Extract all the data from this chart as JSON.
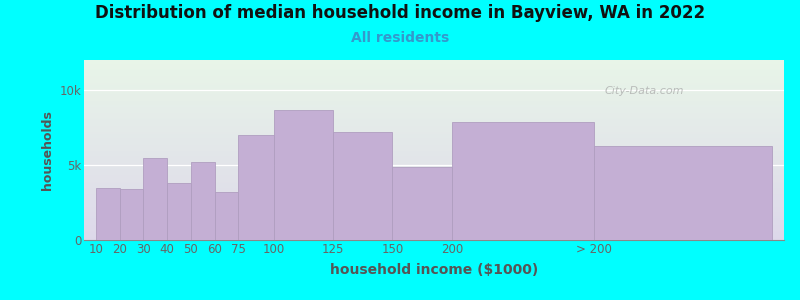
{
  "title": "Distribution of median household income in Bayview, WA in 2022",
  "subtitle": "All residents",
  "xlabel": "household income ($1000)",
  "ylabel": "households",
  "background_color": "#00FFFF",
  "plot_bg_top": "#e8f5e8",
  "plot_bg_bottom": "#ddd8ea",
  "bar_color": "#c4afd4",
  "bar_edge_color": "#b09ec0",
  "watermark": "City-Data.com",
  "categories": [
    "10",
    "20",
    "30",
    "40",
    "50",
    "60",
    "75",
    "100",
    "125",
    "150",
    "200",
    "> 200"
  ],
  "bar_heights": [
    3500,
    3400,
    5500,
    3800,
    5200,
    3200,
    7000,
    8700,
    7200,
    4900,
    7900,
    6300
  ],
  "bar_lefts": [
    5,
    15,
    25,
    35,
    45,
    55,
    65,
    80,
    105,
    130,
    155,
    215
  ],
  "bar_widths": [
    10,
    10,
    10,
    10,
    10,
    10,
    15,
    25,
    25,
    25,
    60,
    75
  ],
  "xlim": [
    0,
    295
  ],
  "ylim": [
    0,
    12000
  ],
  "ytick_vals": [
    0,
    5000,
    10000
  ],
  "ytick_labels": [
    "0",
    "5k",
    "10k"
  ],
  "title_fontsize": 12,
  "subtitle_fontsize": 10,
  "xlabel_fontsize": 10,
  "ylabel_fontsize": 9,
  "tick_fontsize": 8.5
}
